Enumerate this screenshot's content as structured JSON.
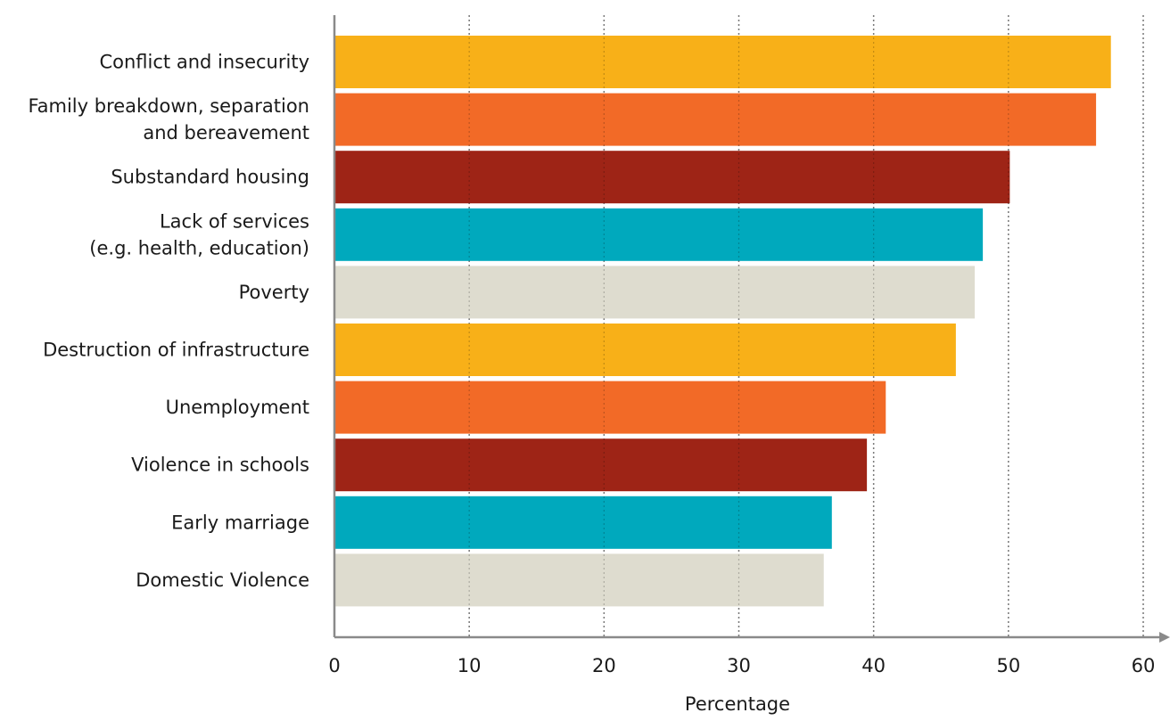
{
  "chart_data": {
    "type": "bar",
    "orientation": "horizontal",
    "categories": [
      [
        "Conflict and insecurity"
      ],
      [
        "Family breakdown, separation",
        "and bereavement"
      ],
      [
        "Substandard housing"
      ],
      [
        "Lack of services",
        "(e.g. health, education)"
      ],
      [
        "Poverty"
      ],
      [
        "Destruction of infrastructure"
      ],
      [
        "Unemployment"
      ],
      [
        "Violence in schools"
      ],
      [
        "Early marriage"
      ],
      [
        "Domestic Violence"
      ]
    ],
    "values": [
      57.6,
      56.5,
      50.1,
      48.1,
      47.5,
      46.1,
      40.9,
      39.5,
      36.9,
      36.3
    ],
    "bar_colors": [
      "#F8B018",
      "#F26A27",
      "#9E2416",
      "#00A9BD",
      "#DEDCCF",
      "#F8B018",
      "#F26A27",
      "#9E2416",
      "#00A9BD",
      "#DEDCCF"
    ],
    "xlabel": "Percentage",
    "xlim": [
      0,
      60
    ],
    "xticks": [
      "0",
      "10",
      "20",
      "30",
      "40",
      "50",
      "60"
    ],
    "grid": "vertical dotted",
    "axis_color": "#8a8a8a",
    "grid_color": "#9a9a9a"
  }
}
